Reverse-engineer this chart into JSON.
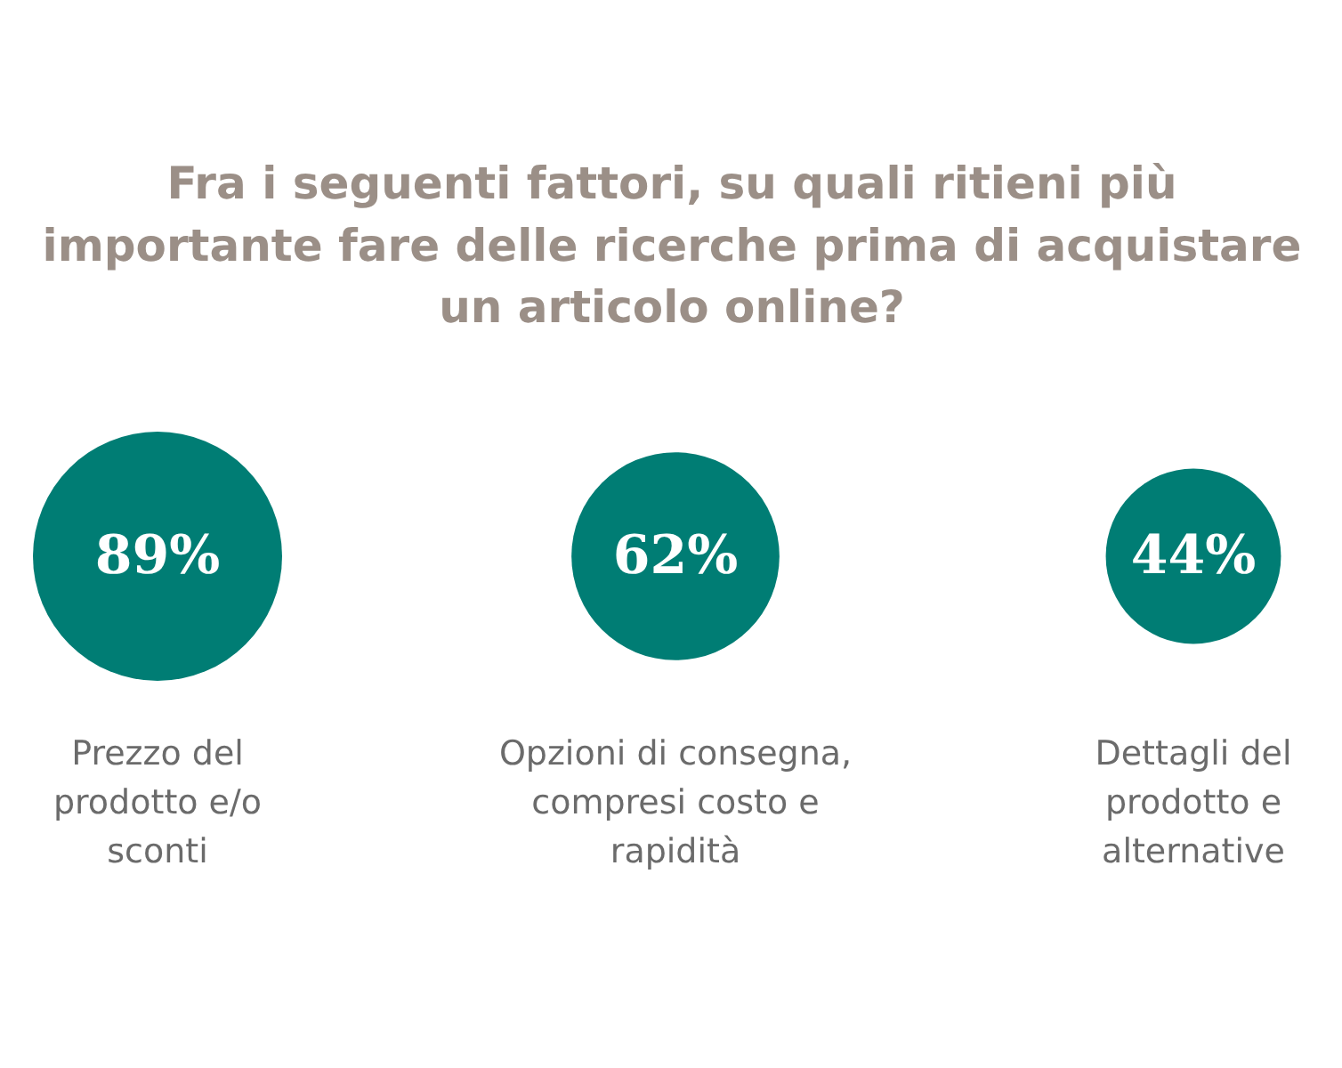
{
  "chart_data": {
    "type": "other",
    "title": "Fra i seguenti fattori, su quali ritieni più\nimportante fare delle ricerche prima di acquistare\nun articolo online?",
    "categories": [
      "Prezzo del\nprodotto e/o\nsconti",
      "Opzioni di consegna,\ncompresi costo e\nrapidità",
      "Dettagli del\nprodotto e\nalternative"
    ],
    "values": [
      89,
      62,
      44
    ],
    "value_labels": [
      "89%",
      "62%",
      "44%"
    ],
    "color": "#007d74"
  }
}
